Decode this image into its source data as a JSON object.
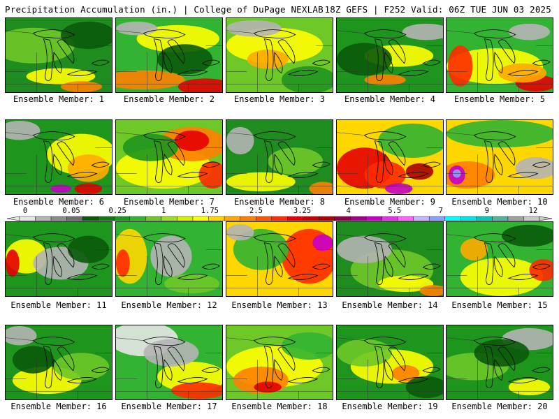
{
  "header": {
    "left": "Precipitation Accumulation (in.) | College of DuPage NEXLAB",
    "right": "18Z GEFS | F252 Valid: 06Z TUE JUN 03 2025"
  },
  "colorbar": {
    "labels": [
      "0",
      "0.05",
      "0.25",
      "1",
      "1.75",
      "2.5",
      "3.25",
      "4",
      "5.5",
      "7",
      "9",
      "12"
    ],
    "colors": [
      "#e6e6e6",
      "#b4b4b4",
      "#8c8c8c",
      "#6e6e6e",
      "#0a5a0a",
      "#137813",
      "#1e961e",
      "#32b432",
      "#6ec828",
      "#a0dc1e",
      "#d2f000",
      "#ffff00",
      "#ffd700",
      "#ffaa00",
      "#ff7f00",
      "#ff5500",
      "#ff2a00",
      "#e60000",
      "#c80000",
      "#aa0000",
      "#8c0046",
      "#a0008c",
      "#c800c8",
      "#e632e6",
      "#ff64ff",
      "#c8b4ff",
      "#8ca0ff",
      "#00ffff",
      "#00e6e6",
      "#00c8b4",
      "#50b4a0",
      "#a0a0a0",
      "#c8c8c8"
    ]
  },
  "panels": [
    {
      "label": "Ensemble Member: 1",
      "base": "#1e8c1e",
      "blobs": [
        [
          "#6ec828",
          40,
          40,
          60,
          26
        ],
        [
          "#ffff00",
          80,
          85,
          50,
          12
        ],
        [
          "#ff7f00",
          110,
          100,
          30,
          8
        ],
        [
          "#0a5a0a",
          120,
          25,
          40,
          20
        ]
      ]
    },
    {
      "label": "Ensemble Member: 2",
      "base": "#32b432",
      "blobs": [
        [
          "#ffff00",
          90,
          30,
          60,
          20
        ],
        [
          "#ff7f00",
          40,
          90,
          60,
          14
        ],
        [
          "#e60000",
          130,
          100,
          40,
          12
        ],
        [
          "#0a5a0a",
          100,
          60,
          40,
          22
        ],
        [
          "#b4b4b4",
          30,
          15,
          30,
          10
        ]
      ]
    },
    {
      "label": "Ensemble Member: 3",
      "base": "#6ec828",
      "blobs": [
        [
          "#ffff00",
          70,
          40,
          70,
          26
        ],
        [
          "#ffaa00",
          60,
          60,
          30,
          14
        ],
        [
          "#b4b4b4",
          40,
          15,
          40,
          12
        ],
        [
          "#1e961e",
          120,
          90,
          40,
          20
        ]
      ]
    },
    {
      "label": "Ensemble Member: 4",
      "base": "#1e961e",
      "blobs": [
        [
          "#ffff00",
          90,
          55,
          50,
          16
        ],
        [
          "#b4b4b4",
          130,
          20,
          35,
          12
        ],
        [
          "#0a5a0a",
          40,
          60,
          40,
          24
        ],
        [
          "#ff7f00",
          70,
          90,
          30,
          8
        ]
      ]
    },
    {
      "label": "Ensemble Member: 5",
      "base": "#32b432",
      "blobs": [
        [
          "#ffff00",
          70,
          70,
          70,
          26
        ],
        [
          "#ff2a00",
          20,
          70,
          18,
          30
        ],
        [
          "#e60000",
          130,
          95,
          30,
          12
        ],
        [
          "#ffaa00",
          110,
          80,
          35,
          14
        ],
        [
          "#b4b4b4",
          120,
          20,
          30,
          12
        ]
      ]
    },
    {
      "label": "Ensemble Member: 6",
      "base": "#1e961e",
      "blobs": [
        [
          "#ffff00",
          110,
          50,
          50,
          30
        ],
        [
          "#ffaa00",
          120,
          70,
          30,
          20
        ],
        [
          "#e60000",
          120,
          100,
          20,
          8
        ],
        [
          "#c800c8",
          80,
          100,
          15,
          6
        ],
        [
          "#b4b4b4",
          20,
          15,
          30,
          14
        ]
      ]
    },
    {
      "label": "Ensemble Member: 7",
      "base": "#6ec828",
      "blobs": [
        [
          "#ffff00",
          70,
          70,
          70,
          30
        ],
        [
          "#ff7f00",
          110,
          35,
          50,
          25
        ],
        [
          "#e60000",
          110,
          30,
          25,
          15
        ],
        [
          "#ff2a00",
          140,
          80,
          20,
          20
        ],
        [
          "#1e961e",
          50,
          40,
          40,
          20
        ]
      ]
    },
    {
      "label": "Ensemble Member: 8",
      "base": "#1e8c1e",
      "blobs": [
        [
          "#ffff00",
          50,
          90,
          50,
          14
        ],
        [
          "#ff7f00",
          140,
          100,
          20,
          10
        ],
        [
          "#b4b4b4",
          20,
          30,
          20,
          20
        ],
        [
          "#6ec828",
          100,
          60,
          40,
          20
        ]
      ]
    },
    {
      "label": "Ensemble Member: 9",
      "base": "#ffd700",
      "blobs": [
        [
          "#e60000",
          40,
          70,
          40,
          30
        ],
        [
          "#ff2a00",
          70,
          80,
          30,
          20
        ],
        [
          "#c800c8",
          90,
          100,
          20,
          8
        ],
        [
          "#32b432",
          110,
          30,
          50,
          25
        ],
        [
          "#aa0000",
          120,
          75,
          20,
          12
        ]
      ]
    },
    {
      "label": "Ensemble Member: 10",
      "base": "#ffd700",
      "blobs": [
        [
          "#32b432",
          80,
          20,
          80,
          20
        ],
        [
          "#ff7f00",
          30,
          80,
          40,
          20
        ],
        [
          "#c800c8",
          15,
          80,
          12,
          14
        ],
        [
          "#8ca0ff",
          15,
          78,
          6,
          6
        ],
        [
          "#b4b4b4",
          130,
          70,
          30,
          16
        ]
      ]
    },
    {
      "label": "Ensemble Member: 11",
      "base": "#1e961e",
      "blobs": [
        [
          "#ffff00",
          30,
          50,
          30,
          25
        ],
        [
          "#e60000",
          10,
          60,
          10,
          20
        ],
        [
          "#b4b4b4",
          80,
          60,
          40,
          24
        ],
        [
          "#0a5a0a",
          120,
          40,
          30,
          20
        ]
      ]
    },
    {
      "label": "Ensemble Member: 12",
      "base": "#32b432",
      "blobs": [
        [
          "#ffd700",
          20,
          50,
          25,
          40
        ],
        [
          "#ff2a00",
          10,
          60,
          10,
          20
        ],
        [
          "#b4b4b4",
          80,
          50,
          30,
          30
        ],
        [
          "#6ec828",
          110,
          90,
          40,
          14
        ]
      ]
    },
    {
      "label": "Ensemble Member: 13",
      "base": "#ffd700",
      "blobs": [
        [
          "#ff2a00",
          120,
          50,
          40,
          40
        ],
        [
          "#c800c8",
          140,
          30,
          15,
          12
        ],
        [
          "#32b432",
          50,
          40,
          40,
          30
        ],
        [
          "#b4b4b4",
          20,
          15,
          20,
          12
        ]
      ]
    },
    {
      "label": "Ensemble Member: 14",
      "base": "#1e8c1e",
      "blobs": [
        [
          "#6ec828",
          80,
          70,
          60,
          30
        ],
        [
          "#ffff00",
          100,
          90,
          40,
          12
        ],
        [
          "#b4b4b4",
          40,
          40,
          40,
          20
        ],
        [
          "#ff7f00",
          140,
          100,
          20,
          8
        ]
      ]
    },
    {
      "label": "Ensemble Member: 15",
      "base": "#32b432",
      "blobs": [
        [
          "#ffff00",
          80,
          80,
          60,
          28
        ],
        [
          "#ff2a00",
          140,
          70,
          20,
          16
        ],
        [
          "#ffaa00",
          40,
          40,
          20,
          16
        ],
        [
          "#0a5a0a",
          120,
          20,
          40,
          16
        ]
      ]
    },
    {
      "label": "Ensemble Member: 16",
      "base": "#1e961e",
      "blobs": [
        [
          "#ffff00",
          60,
          80,
          50,
          20
        ],
        [
          "#b4b4b4",
          20,
          15,
          25,
          14
        ],
        [
          "#6ec828",
          110,
          60,
          40,
          20
        ],
        [
          "#0a5a0a",
          40,
          50,
          30,
          20
        ]
      ]
    },
    {
      "label": "Ensemble Member: 17",
      "base": "#32b432",
      "blobs": [
        [
          "#e6e6e6",
          40,
          20,
          50,
          25
        ],
        [
          "#ffff00",
          110,
          75,
          50,
          22
        ],
        [
          "#ff2a00",
          120,
          95,
          40,
          12
        ],
        [
          "#b4b4b4",
          80,
          40,
          40,
          20
        ]
      ]
    },
    {
      "label": "Ensemble Member: 18",
      "base": "#6ec828",
      "blobs": [
        [
          "#ffff00",
          70,
          60,
          70,
          30
        ],
        [
          "#ff7f00",
          50,
          80,
          40,
          20
        ],
        [
          "#e60000",
          60,
          90,
          20,
          8
        ],
        [
          "#32b432",
          120,
          30,
          40,
          20
        ]
      ]
    },
    {
      "label": "Ensemble Member: 19",
      "base": "#1e961e",
      "blobs": [
        [
          "#ffff00",
          80,
          60,
          60,
          25
        ],
        [
          "#ff7f00",
          100,
          70,
          20,
          12
        ],
        [
          "#6ec828",
          40,
          40,
          40,
          20
        ],
        [
          "#0a5a0a",
          130,
          90,
          30,
          16
        ]
      ]
    },
    {
      "label": "Ensemble Member: 20",
      "base": "#1e961e",
      "blobs": [
        [
          "#b4b4b4",
          120,
          20,
          40,
          16
        ],
        [
          "#6ec828",
          40,
          60,
          50,
          20
        ],
        [
          "#ffff00",
          120,
          90,
          30,
          12
        ],
        [
          "#0a5a0a",
          80,
          40,
          40,
          20
        ]
      ]
    }
  ]
}
